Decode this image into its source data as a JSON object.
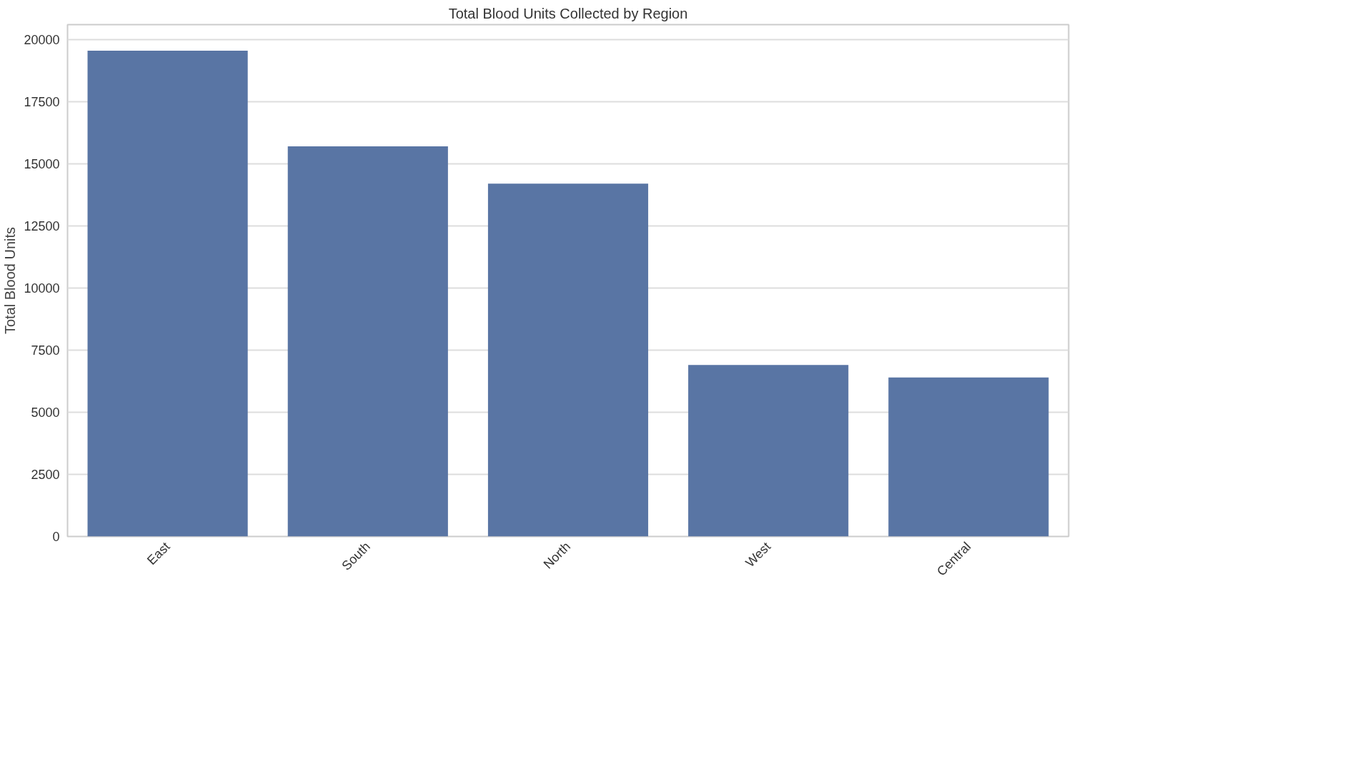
{
  "chart_data": {
    "type": "bar",
    "title": "Total Blood Units Collected by Region",
    "ylabel": "Total Blood Units",
    "categories": [
      "East",
      "South",
      "North",
      "West",
      "Central"
    ],
    "values": [
      19550,
      15700,
      14200,
      6900,
      6400
    ],
    "color": "#5975a4",
    "ylim": [
      0,
      20600
    ],
    "yticks": [
      0,
      2500,
      5000,
      7500,
      10000,
      12500,
      15000,
      17500,
      20000
    ],
    "grid": "y"
  }
}
